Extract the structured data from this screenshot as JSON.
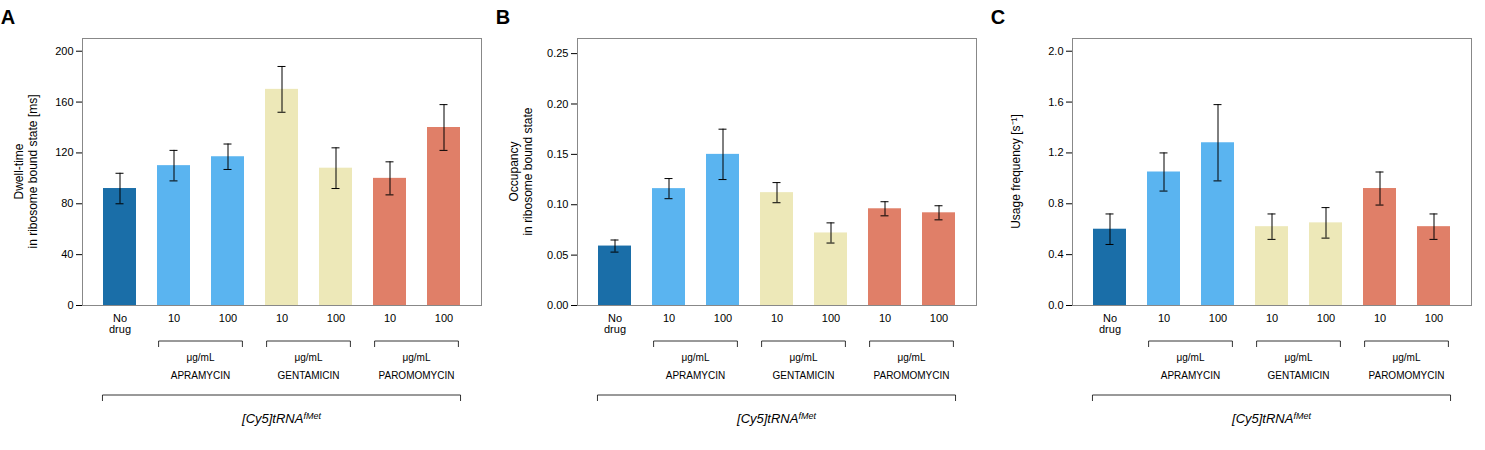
{
  "chart_data": [
    {
      "type": "bar",
      "title": "A",
      "ylabel": "Dwell-time\nin ribosome bound state [ms]",
      "xlabel": {
        "text": "[Cy5]tRNA",
        "superscript": "fMet"
      },
      "categories": [
        "No\ndrug",
        "10",
        "100",
        "10",
        "100",
        "10",
        "100"
      ],
      "values": [
        92,
        110,
        117,
        170,
        108,
        100,
        140
      ],
      "errors": [
        12,
        12,
        10,
        18,
        16,
        13,
        18
      ],
      "colors": [
        "#1a6ea8",
        "#5ab4f0",
        "#5ab4f0",
        "#ede8b8",
        "#ede8b8",
        "#e07f68",
        "#e07f68"
      ],
      "ylim": [
        0,
        210
      ],
      "yticks": [
        0,
        40,
        80,
        120,
        160,
        200
      ],
      "groups": [
        {
          "bars": [
            1,
            2
          ],
          "unit": "μg/mL",
          "name": "APRAMYCIN"
        },
        {
          "bars": [
            3,
            4
          ],
          "unit": "μg/mL",
          "name": "GENTAMICIN"
        },
        {
          "bars": [
            5,
            6
          ],
          "unit": "μg/mL",
          "name": "PAROMOMYCIN"
        }
      ]
    },
    {
      "type": "bar",
      "title": "B",
      "ylabel": "Occupancy\nin ribosome bound state",
      "xlabel": {
        "text": "[Cy5]tRNA",
        "superscript": "fMet"
      },
      "categories": [
        "No\ndrug",
        "10",
        "100",
        "10",
        "100",
        "10",
        "100"
      ],
      "values": [
        0.059,
        0.116,
        0.15,
        0.112,
        0.072,
        0.096,
        0.092
      ],
      "errors": [
        0.006,
        0.01,
        0.025,
        0.01,
        0.01,
        0.007,
        0.007
      ],
      "colors": [
        "#1a6ea8",
        "#5ab4f0",
        "#5ab4f0",
        "#ede8b8",
        "#ede8b8",
        "#e07f68",
        "#e07f68"
      ],
      "ylim": [
        0,
        0.265
      ],
      "yticks": [
        {
          "value": 0,
          "label": "0.00"
        },
        0.05,
        {
          "value": 0.1,
          "label": "0.10"
        },
        0.15,
        {
          "value": 0.2,
          "label": "0.20"
        },
        0.25
      ],
      "groups": [
        {
          "bars": [
            1,
            2
          ],
          "unit": "μg/mL",
          "name": "APRAMYCIN"
        },
        {
          "bars": [
            3,
            4
          ],
          "unit": "μg/mL",
          "name": "GENTAMICIN"
        },
        {
          "bars": [
            5,
            6
          ],
          "unit": "μg/mL",
          "name": "PAROMOMYCIN"
        }
      ]
    },
    {
      "type": "bar",
      "title": "C",
      "ylabel": "Usage frequency [s⁻¹]",
      "xlabel": {
        "text": "[Cy5]tRNA",
        "superscript": "fMet"
      },
      "categories": [
        "No\ndrug",
        "10",
        "100",
        "10",
        "100",
        "10",
        "100"
      ],
      "values": [
        0.6,
        1.05,
        1.28,
        0.62,
        0.65,
        0.92,
        0.62
      ],
      "errors": [
        0.12,
        0.15,
        0.3,
        0.1,
        0.12,
        0.13,
        0.1
      ],
      "colors": [
        "#1a6ea8",
        "#5ab4f0",
        "#5ab4f0",
        "#ede8b8",
        "#ede8b8",
        "#e07f68",
        "#e07f68"
      ],
      "ylim": [
        0,
        2.1
      ],
      "yticks": [
        {
          "value": 0,
          "label": "0.0"
        },
        0.4,
        0.8,
        1.2,
        1.6,
        {
          "value": 2.0,
          "label": "2.0"
        }
      ],
      "groups": [
        {
          "bars": [
            1,
            2
          ],
          "unit": "μg/mL",
          "name": "APRAMYCIN"
        },
        {
          "bars": [
            3,
            4
          ],
          "unit": "μg/mL",
          "name": "GENTAMICIN"
        },
        {
          "bars": [
            5,
            6
          ],
          "unit": "μg/mL",
          "name": "PAROMOMYCIN"
        }
      ]
    }
  ]
}
